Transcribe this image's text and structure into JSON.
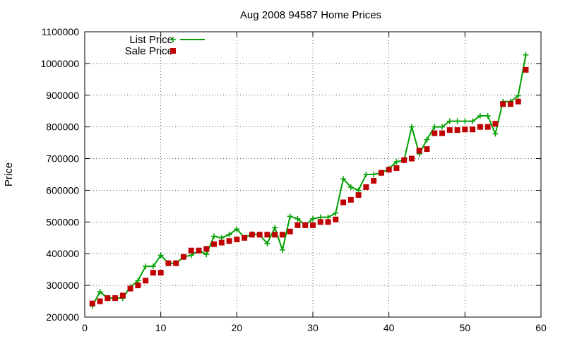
{
  "chart_data": {
    "type": "line",
    "title": "Aug 2008 94587 Home Prices",
    "xlabel": "",
    "ylabel": "Price",
    "xlim": [
      0,
      60
    ],
    "ylim": [
      200000,
      1100000
    ],
    "xticks": [
      0,
      10,
      20,
      30,
      40,
      50,
      60
    ],
    "yticks": [
      200000,
      300000,
      400000,
      500000,
      600000,
      700000,
      800000,
      900000,
      1000000,
      1100000
    ],
    "grid": true,
    "legend": "top-left",
    "series": [
      {
        "name": "List Price",
        "style": "line-plus",
        "color": "#00a000",
        "x": [
          1,
          2,
          3,
          4,
          5,
          6,
          7,
          8,
          9,
          10,
          11,
          12,
          13,
          14,
          15,
          16,
          17,
          18,
          19,
          20,
          21,
          22,
          23,
          24,
          25,
          26,
          27,
          28,
          29,
          30,
          31,
          32,
          33,
          34,
          35,
          36,
          37,
          38,
          39,
          40,
          41,
          42,
          43,
          44,
          45,
          46,
          47,
          48,
          49,
          50,
          51,
          52,
          53,
          54,
          55,
          56,
          57,
          58
        ],
        "y": [
          235000,
          280000,
          260000,
          260000,
          260000,
          295000,
          315000,
          360000,
          360000,
          395000,
          370000,
          370000,
          390000,
          395000,
          410000,
          398000,
          455000,
          450000,
          460000,
          478000,
          450000,
          462000,
          460000,
          432000,
          482000,
          412000,
          518000,
          510000,
          490000,
          510000,
          515000,
          515000,
          528000,
          636000,
          610000,
          600000,
          650000,
          650000,
          655000,
          668000,
          690000,
          695000,
          800000,
          715000,
          760000,
          800000,
          800000,
          818000,
          818000,
          818000,
          818000,
          835000,
          835000,
          778000,
          880000,
          880000,
          898000,
          1027000
        ]
      },
      {
        "name": "Sale Price",
        "style": "square",
        "color": "#c00000",
        "x": [
          1,
          2,
          3,
          4,
          5,
          6,
          7,
          8,
          9,
          10,
          11,
          12,
          13,
          14,
          15,
          16,
          17,
          18,
          19,
          20,
          21,
          22,
          23,
          24,
          25,
          26,
          27,
          28,
          29,
          30,
          31,
          32,
          33,
          34,
          35,
          36,
          37,
          38,
          39,
          40,
          41,
          42,
          43,
          44,
          45,
          46,
          47,
          48,
          49,
          50,
          51,
          52,
          53,
          54,
          55,
          56,
          57,
          58
        ],
        "y": [
          243000,
          250000,
          260000,
          260000,
          268000,
          290000,
          300000,
          315000,
          340000,
          340000,
          370000,
          370000,
          390000,
          410000,
          410000,
          415000,
          430000,
          435000,
          440000,
          445000,
          450000,
          460000,
          460000,
          460000,
          460000,
          460000,
          470000,
          490000,
          490000,
          490000,
          500000,
          500000,
          508000,
          562000,
          570000,
          585000,
          610000,
          630000,
          655000,
          665000,
          670000,
          695000,
          700000,
          725000,
          730000,
          780000,
          780000,
          790000,
          790000,
          792000,
          792000,
          800000,
          800000,
          810000,
          872000,
          872000,
          880000,
          980000
        ]
      }
    ]
  }
}
